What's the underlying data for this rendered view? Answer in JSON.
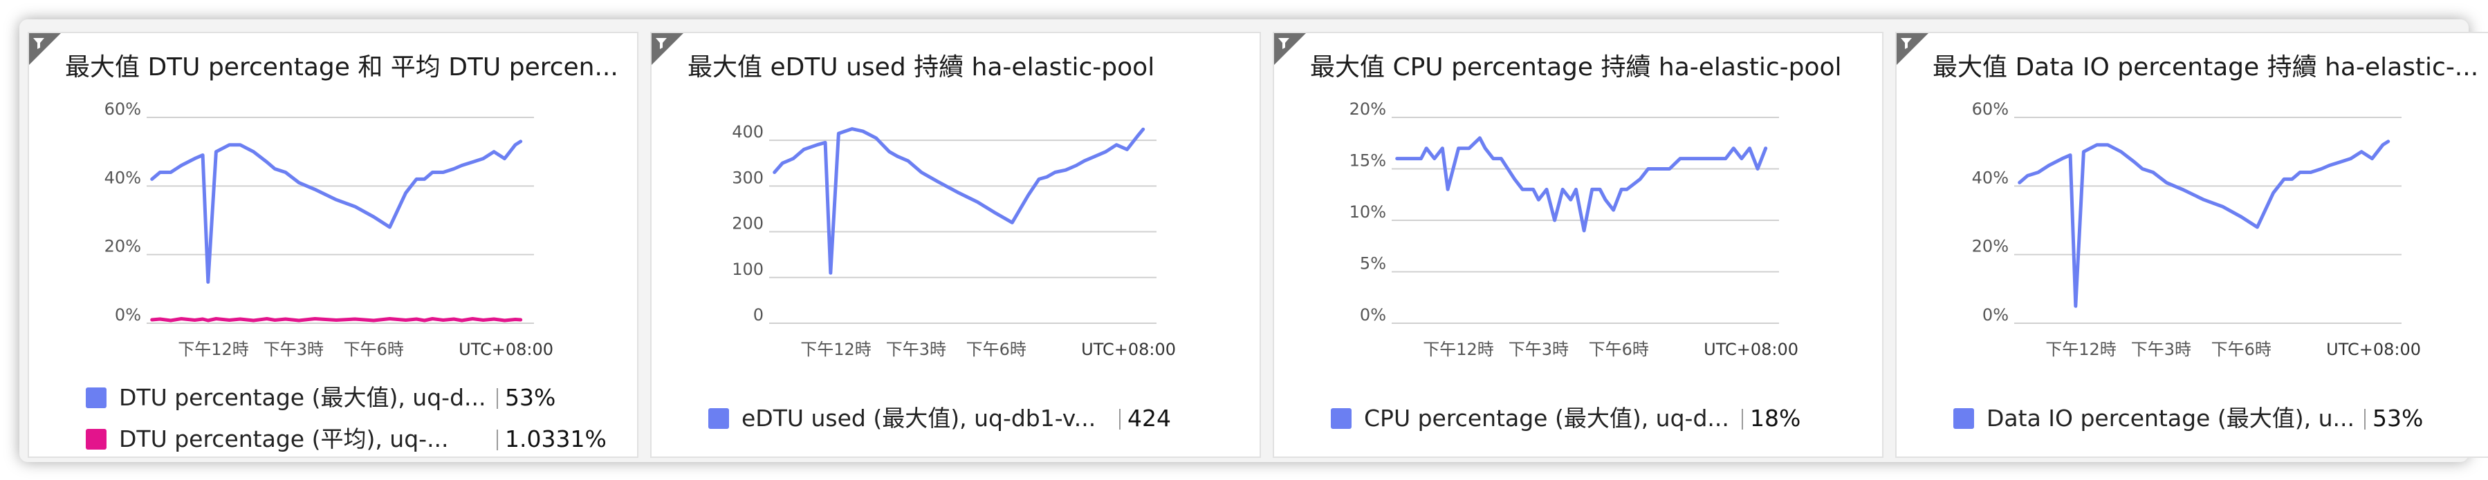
{
  "colors": {
    "blue": "#6b7ff2",
    "magenta": "#e3148c"
  },
  "icons": {
    "filter": "filter-icon"
  },
  "tiles": [
    {
      "title": "最大值 DTU percentage 和 平均 DTU percen...",
      "timezone": "UTC+08:00",
      "legend": [
        {
          "label": "DTU percentage (最大值), uq-d...",
          "value": "53%",
          "color": "#6b7ff2"
        },
        {
          "label": "DTU percentage (平均), uq-...",
          "value": "1.0331%",
          "color": "#e3148c"
        }
      ]
    },
    {
      "title": "最大值 eDTU used 持續 ha-elastic-pool",
      "timezone": "UTC+08:00",
      "legend": [
        {
          "label": "eDTU used (最大值), uq-db1-v...",
          "value": "424",
          "color": "#6b7ff2"
        }
      ]
    },
    {
      "title": "最大值 CPU percentage 持續 ha-elastic-pool",
      "timezone": "UTC+08:00",
      "legend": [
        {
          "label": "CPU percentage (最大值), uq-d...",
          "value": "18%",
          "color": "#6b7ff2"
        }
      ]
    },
    {
      "title": "最大值 Data IO percentage 持續 ha-elastic-...",
      "timezone": "UTC+08:00",
      "legend": [
        {
          "label": "Data IO percentage (最大值), u...",
          "value": "53%",
          "color": "#6b7ff2"
        }
      ]
    }
  ],
  "chart_data": [
    {
      "type": "line",
      "title": "最大值 DTU percentage 和 平均 DTU percen...",
      "x_tick_labels": [
        "下午12時",
        "下午3時",
        "下午6時"
      ],
      "y_tick_labels": [
        "0%",
        "20%",
        "40%",
        "60%"
      ],
      "ylim": [
        0,
        60
      ],
      "grid": true,
      "legend_position": "bottom",
      "x_hours": [
        9.7,
        10.0,
        10.4,
        10.8,
        11.3,
        11.6,
        11.8,
        12.1,
        12.6,
        13.0,
        13.5,
        14.0,
        14.3,
        14.7,
        15.2,
        15.8,
        16.6,
        17.3,
        18.0,
        18.6,
        19.2,
        19.6,
        19.9,
        20.2,
        20.6,
        21.0,
        21.3,
        21.7,
        22.1,
        22.5,
        22.9,
        23.3,
        23.5
      ],
      "series": [
        {
          "name": "DTU percentage (最大值), uq-d...",
          "color": "#6b7ff2",
          "values": [
            42,
            44,
            44,
            46,
            48,
            49,
            12,
            50,
            52,
            52,
            50,
            47,
            45,
            44,
            41,
            39,
            36,
            34,
            31,
            28,
            38,
            42,
            42,
            44,
            44,
            45,
            46,
            47,
            48,
            50,
            48,
            52,
            53
          ]
        },
        {
          "name": "DTU percentage (平均), uq-...",
          "color": "#e3148c",
          "values": [
            1.0,
            1.2,
            0.8,
            1.3,
            0.9,
            1.2,
            0.8,
            1.3,
            0.9,
            1.2,
            0.8,
            1.3,
            0.9,
            1.2,
            0.8,
            1.3,
            0.9,
            1.2,
            0.8,
            1.3,
            0.9,
            1.2,
            0.8,
            1.3,
            0.9,
            1.2,
            0.8,
            1.3,
            0.9,
            1.2,
            0.8,
            1.1,
            1.0
          ]
        }
      ]
    },
    {
      "type": "line",
      "title": "最大值 eDTU used 持續 ha-elastic-pool",
      "x_tick_labels": [
        "下午12時",
        "下午3時",
        "下午6時"
      ],
      "y_tick_labels": [
        "0",
        "100",
        "200",
        "300",
        "400"
      ],
      "ylim": [
        0,
        450
      ],
      "grid": true,
      "legend_position": "bottom",
      "x_hours": [
        9.7,
        10.0,
        10.4,
        10.8,
        11.3,
        11.6,
        11.8,
        12.1,
        12.6,
        13.0,
        13.5,
        14.0,
        14.3,
        14.7,
        15.2,
        15.8,
        16.6,
        17.3,
        18.0,
        18.6,
        19.2,
        19.6,
        19.9,
        20.2,
        20.6,
        21.0,
        21.3,
        21.7,
        22.1,
        22.5,
        22.9,
        23.3,
        23.5
      ],
      "series": [
        {
          "name": "eDTU used (最大值), uq-db1-v...",
          "color": "#6b7ff2",
          "values": [
            330,
            350,
            360,
            380,
            390,
            395,
            110,
            415,
            425,
            420,
            405,
            375,
            365,
            355,
            330,
            310,
            285,
            265,
            240,
            220,
            280,
            315,
            320,
            330,
            335,
            345,
            355,
            365,
            375,
            390,
            380,
            410,
            424
          ]
        }
      ]
    },
    {
      "type": "line",
      "title": "最大值 CPU percentage 持續 ha-elastic-pool",
      "x_tick_labels": [
        "下午12時",
        "下午3時",
        "下午6時"
      ],
      "y_tick_labels": [
        "0%",
        "5%",
        "10%",
        "15%",
        "20%"
      ],
      "ylim": [
        0,
        20
      ],
      "grid": true,
      "legend_position": "bottom",
      "x_hours": [
        9.7,
        10.6,
        10.8,
        11.1,
        11.4,
        11.6,
        12.0,
        12.4,
        12.8,
        13.0,
        13.3,
        13.6,
        14.1,
        14.4,
        14.8,
        15.0,
        15.3,
        15.6,
        15.9,
        16.2,
        16.4,
        16.7,
        17.0,
        17.3,
        17.5,
        17.8,
        18.1,
        18.3,
        18.8,
        19.1,
        19.5,
        19.9,
        20.3,
        21.0,
        22.0,
        22.3,
        22.6,
        22.9,
        23.2,
        23.5
      ],
      "series": [
        {
          "name": "CPU percentage (最大值), uq-d...",
          "color": "#6b7ff2",
          "values": [
            16,
            16,
            17,
            16,
            17,
            13,
            17,
            17,
            18,
            17,
            16,
            16,
            14,
            13,
            13,
            12,
            13,
            10,
            13,
            12,
            13,
            9,
            13,
            13,
            12,
            11,
            13,
            13,
            14,
            15,
            15,
            15,
            16,
            16,
            16,
            17,
            16,
            17,
            15,
            17
          ]
        }
      ]
    },
    {
      "type": "line",
      "title": "最大值 Data IO percentage 持續 ha-elastic-...",
      "x_tick_labels": [
        "下午12時",
        "下午3時",
        "下午6時"
      ],
      "y_tick_labels": [
        "0%",
        "20%",
        "40%",
        "60%"
      ],
      "ylim": [
        0,
        60
      ],
      "grid": true,
      "legend_position": "bottom",
      "x_hours": [
        9.7,
        10.0,
        10.4,
        10.8,
        11.3,
        11.6,
        11.8,
        12.1,
        12.6,
        13.0,
        13.5,
        14.0,
        14.3,
        14.7,
        15.2,
        15.8,
        16.6,
        17.3,
        18.0,
        18.6,
        19.2,
        19.6,
        19.9,
        20.2,
        20.6,
        21.0,
        21.3,
        21.7,
        22.1,
        22.5,
        22.9,
        23.3,
        23.5
      ],
      "series": [
        {
          "name": "Data IO percentage (最大值), u...",
          "color": "#6b7ff2",
          "values": [
            41,
            43,
            44,
            46,
            48,
            49,
            5,
            50,
            52,
            52,
            50,
            47,
            45,
            44,
            41,
            39,
            36,
            34,
            31,
            28,
            38,
            42,
            42,
            44,
            44,
            45,
            46,
            47,
            48,
            50,
            48,
            52,
            53
          ]
        }
      ]
    }
  ]
}
